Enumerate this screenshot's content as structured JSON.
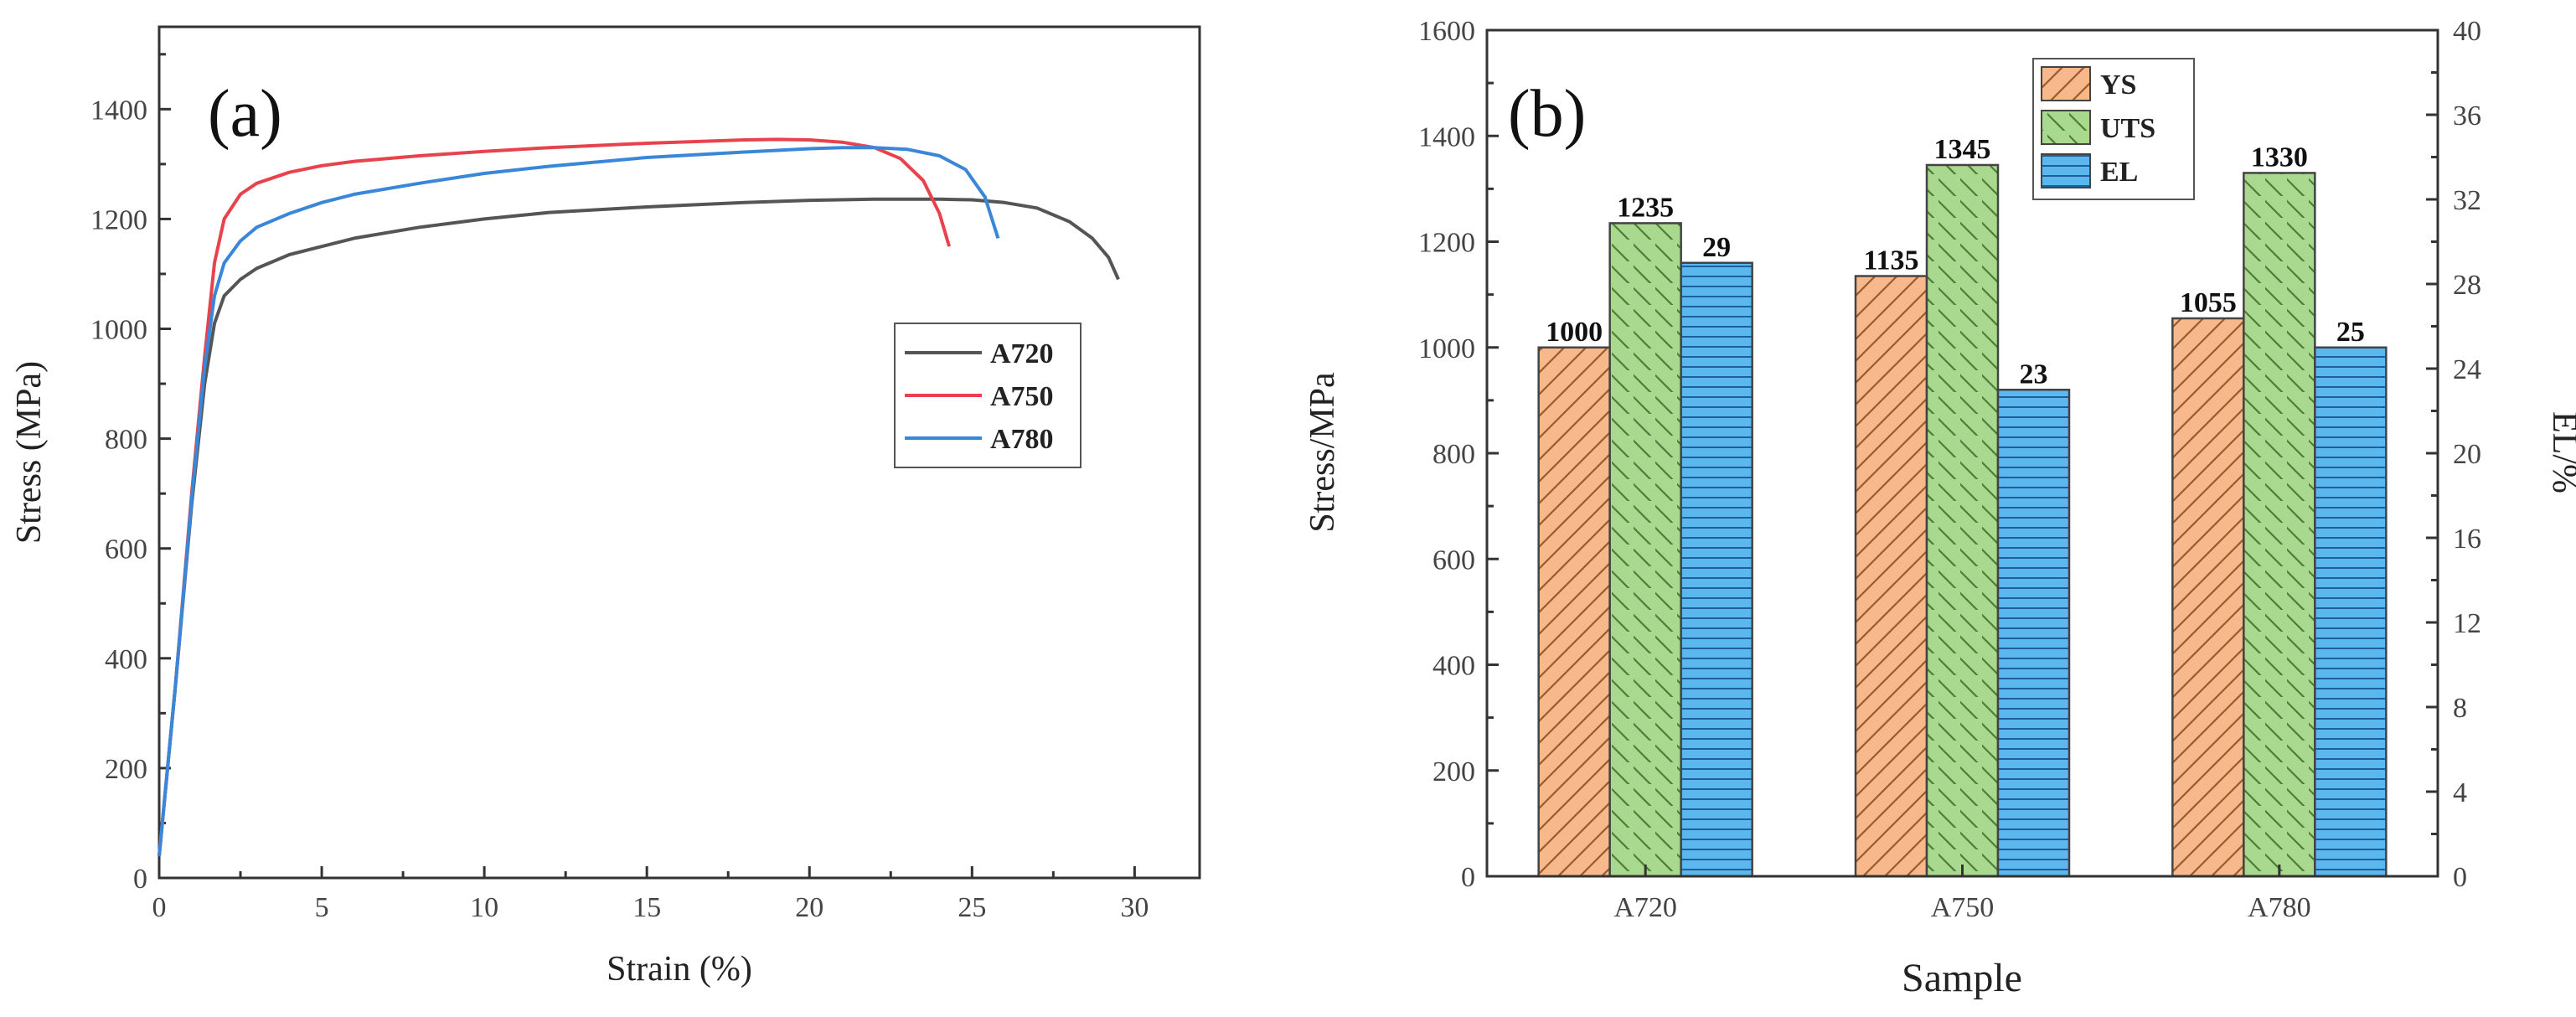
{
  "chart_data": [
    {
      "type": "line",
      "panel_label": "(a)",
      "xlabel": "Strain (%)",
      "ylabel": "Stress (MPa)",
      "xlim": [
        0,
        32
      ],
      "ylim": [
        0,
        1550
      ],
      "xticks": [
        0,
        5,
        10,
        15,
        20,
        25,
        30
      ],
      "yticks": [
        0,
        200,
        400,
        600,
        800,
        1000,
        1200,
        1400
      ],
      "legend_position": "center-right",
      "series": [
        {
          "name": "A720",
          "color": "#555555",
          "x": [
            0,
            0.5,
            1.0,
            1.4,
            1.7,
            2.0,
            2.5,
            3,
            4,
            5,
            6,
            8,
            10,
            12,
            15,
            18,
            20,
            22,
            24,
            25,
            26,
            27,
            28,
            28.7,
            29.2,
            29.5
          ],
          "y": [
            40,
            350,
            680,
            900,
            1010,
            1060,
            1090,
            1110,
            1135,
            1150,
            1165,
            1185,
            1200,
            1212,
            1222,
            1230,
            1234,
            1236,
            1236,
            1235,
            1230,
            1220,
            1195,
            1165,
            1130,
            1090
          ]
        },
        {
          "name": "A750",
          "color": "#e8434c",
          "x": [
            0,
            0.5,
            1.0,
            1.4,
            1.7,
            2.0,
            2.5,
            3,
            4,
            5,
            6,
            8,
            10,
            12,
            15,
            18,
            19,
            20,
            21,
            22,
            22.8,
            23.5,
            24.0,
            24.3
          ],
          "y": [
            40,
            350,
            700,
            950,
            1120,
            1200,
            1245,
            1265,
            1285,
            1297,
            1305,
            1315,
            1323,
            1330,
            1338,
            1344,
            1345,
            1344,
            1340,
            1330,
            1310,
            1270,
            1210,
            1150
          ]
        },
        {
          "name": "A780",
          "color": "#3a86d8",
          "x": [
            0,
            0.5,
            1.0,
            1.4,
            1.7,
            2.0,
            2.5,
            3,
            4,
            5,
            6,
            8,
            10,
            12,
            15,
            18,
            20,
            21,
            22,
            23,
            24,
            24.8,
            25.4,
            25.8
          ],
          "y": [
            40,
            350,
            690,
            930,
            1060,
            1120,
            1160,
            1185,
            1210,
            1230,
            1245,
            1265,
            1283,
            1296,
            1312,
            1322,
            1328,
            1330,
            1330,
            1327,
            1315,
            1290,
            1240,
            1165
          ]
        }
      ]
    },
    {
      "type": "bar",
      "panel_label": "(b)",
      "xlabel": "Sample",
      "ylabel": "Stress/MPa",
      "y2label": "EL/%",
      "categories": [
        "A720",
        "A750",
        "A780"
      ],
      "ylim": [
        0,
        1600
      ],
      "y2lim": [
        0,
        40
      ],
      "yticks": [
        0,
        200,
        400,
        600,
        800,
        1000,
        1200,
        1400,
        1600
      ],
      "y2ticks": [
        0,
        4,
        8,
        12,
        16,
        20,
        24,
        28,
        32,
        36,
        40
      ],
      "legend_position": "top-center",
      "series": [
        {
          "name": "YS",
          "axis": "left",
          "color": "#f7b98c",
          "values": [
            1000,
            1135,
            1055
          ],
          "labels": [
            "1000",
            "1135",
            "1055"
          ]
        },
        {
          "name": "UTS",
          "axis": "left",
          "color": "#a9d98e",
          "values": [
            1235,
            1345,
            1330
          ],
          "labels": [
            "1235",
            "1345",
            "1330"
          ]
        },
        {
          "name": "EL",
          "axis": "right",
          "color": "#5bb8ee",
          "values": [
            29,
            23,
            25
          ],
          "labels": [
            "29",
            "23",
            "25"
          ]
        }
      ]
    }
  ]
}
